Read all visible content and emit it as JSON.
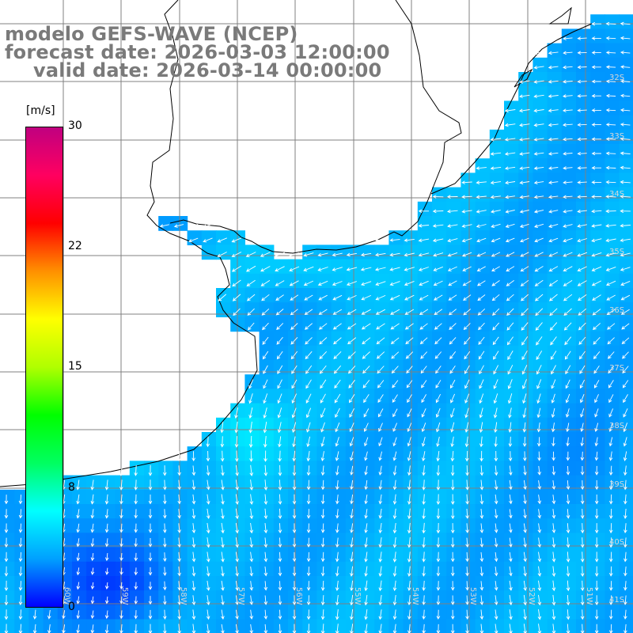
{
  "header": {
    "line1": "modelo GEFS-WAVE (NCEP)",
    "line2": "forecast date: 2026-03-03 12:00:00",
    "line3": "valid date: 2026-03-14 00:00:00"
  },
  "colorbar": {
    "units": "[m/s]",
    "ticks": [
      "30",
      "22",
      "15",
      "8",
      "0"
    ],
    "tick_values": [
      30,
      22,
      15,
      8,
      0
    ],
    "range": [
      0,
      30
    ],
    "stops": [
      "#0000ff",
      "#00a0ff",
      "#00ffff",
      "#00ff60",
      "#00ff00",
      "#b0ff00",
      "#ffff00",
      "#ff9000",
      "#ff0000",
      "#ff0060",
      "#c00080"
    ]
  },
  "map": {
    "lat_labels": [
      "32S",
      "33S",
      "34S",
      "35S",
      "36S",
      "37S",
      "38S",
      "39S",
      "40S",
      "41S"
    ],
    "lon_labels": [
      "60W",
      "59W",
      "58W",
      "57W",
      "56W",
      "55W",
      "54W",
      "53W",
      "52W",
      "51W"
    ],
    "wind_direction": "southwest",
    "land_color": "#ffffff",
    "grid_color": "#808080"
  }
}
